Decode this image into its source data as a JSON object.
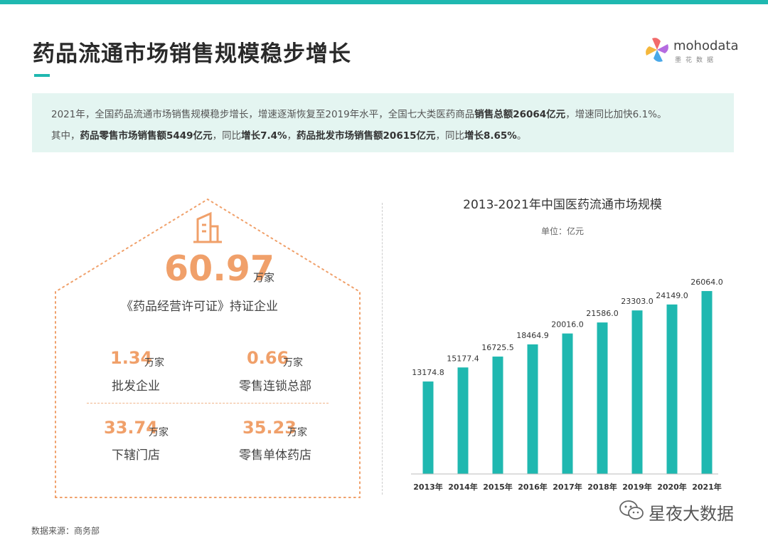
{
  "header": {
    "title": "药品流通市场销售规模稳步增长",
    "logo_text": "mohodata",
    "logo_sub": "墨花数据"
  },
  "summary": {
    "line1_a": "2021年，全国药品流通市场销售规模稳步增长，增速逐渐恢复至2019年水平，全国七大类医药商品",
    "line1_b": "销售总额26064亿元",
    "line1_c": "，增速同比加快6.1%。",
    "line2_a": "其中，",
    "line2_b": "药品零售市场销售额5449亿元",
    "line2_c": "，同比",
    "line2_d": "增长7.4%",
    "line2_e": "，",
    "line2_f": "药品批发市场销售额20615亿元",
    "line2_g": "，同比",
    "line2_h": "增长8.65%",
    "line2_i": "。"
  },
  "stats": {
    "main": {
      "value": "60.97",
      "unit": "万家",
      "desc": "《药品经营许可证》持证企业"
    },
    "items": [
      {
        "value": "1.34",
        "unit": "万家",
        "desc": "批发企业"
      },
      {
        "value": "0.66",
        "unit": "万家",
        "desc": "零售连锁总部"
      },
      {
        "value": "33.74",
        "unit": "万家",
        "desc": "下辖门店"
      },
      {
        "value": "35.23",
        "unit": "万家",
        "desc": "零售单体药店"
      }
    ],
    "accent_color": "#f0a06a",
    "icon": "building-icon"
  },
  "chart_data": {
    "type": "bar",
    "title": "2013-2021年中国医药流通市场规模",
    "unit": "单位：亿元",
    "categories": [
      "2013年",
      "2014年",
      "2015年",
      "2016年",
      "2017年",
      "2018年",
      "2019年",
      "2020年",
      "2021年"
    ],
    "values": [
      13174.8,
      15177.4,
      16725.5,
      18464.9,
      20016.0,
      21586.0,
      23303.0,
      24149.0,
      26064.0
    ],
    "value_labels": [
      "13174.8",
      "15177.4",
      "16725.5",
      "18464.9",
      "20016.0",
      "21586.0",
      "23303.0",
      "24149.0",
      "26064.0"
    ],
    "ylim": [
      0,
      29000
    ],
    "bar_color": "#1fb8b0",
    "grid": false,
    "legend": "none"
  },
  "footer": {
    "source": "数据来源：商务部",
    "watermark": "星夜大数据"
  }
}
